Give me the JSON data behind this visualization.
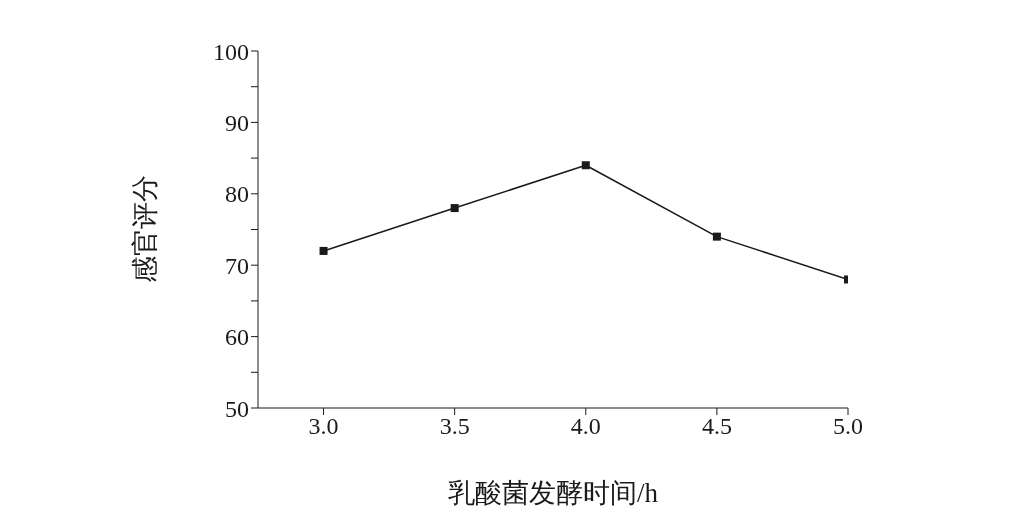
{
  "chart_data": {
    "type": "line",
    "xlabel": "乳酸菌发酵时间/h",
    "ylabel": "感官评分",
    "x": [
      3.0,
      3.5,
      4.0,
      4.5,
      5.0
    ],
    "series": [
      {
        "color": "#1a1a1a",
        "values": [
          72,
          78,
          84,
          74,
          68
        ]
      }
    ],
    "xlim": [
      2.75,
      5.0
    ],
    "xticks": [
      {
        "value": 3,
        "label": "3.0"
      },
      {
        "value": 3.5,
        "label": "3.5"
      },
      {
        "value": 4,
        "label": "4.0"
      },
      {
        "value": 4.5,
        "label": "4.5"
      },
      {
        "value": 5,
        "label": "5.0"
      }
    ],
    "ylim": [
      50,
      100
    ],
    "yticks": [
      50,
      {
        "value": 55,
        "label": null
      },
      60,
      {
        "value": 65,
        "label": null
      },
      70,
      {
        "value": 75,
        "label": null
      },
      80,
      {
        "value": 85,
        "label": null
      },
      90,
      {
        "value": 95,
        "label": null
      },
      100
    ],
    "grid": false,
    "legend": false,
    "marker": "square",
    "line_style": "solid"
  }
}
